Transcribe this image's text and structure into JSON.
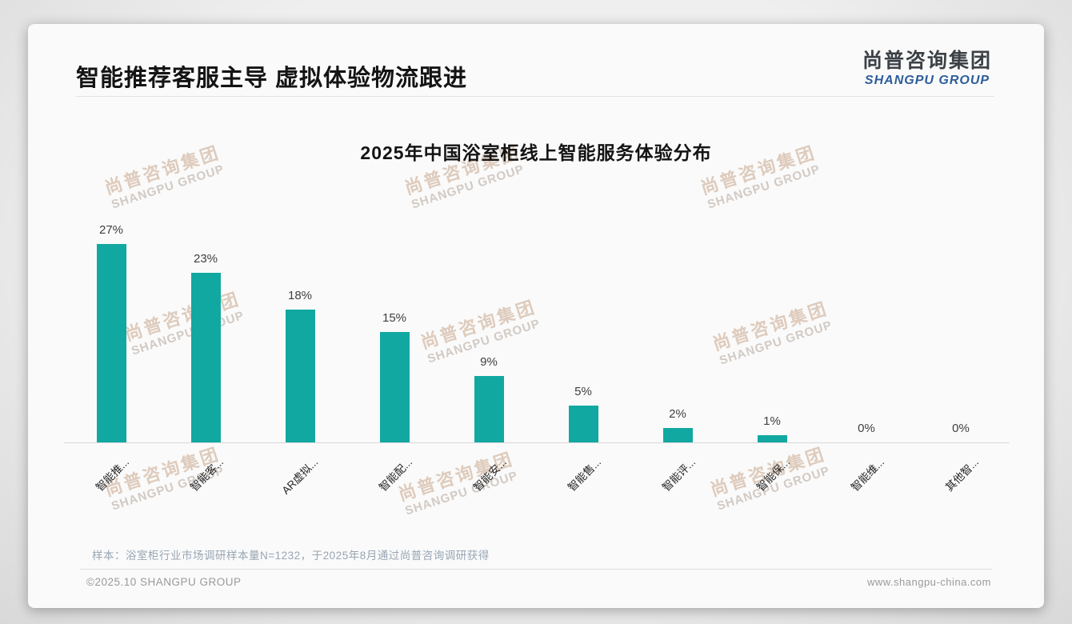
{
  "page_title": "智能推荐客服主导 虚拟体验物流跟进",
  "logo": {
    "cn": "尚普咨询集团",
    "en": "SHANGPU GROUP"
  },
  "watermark": {
    "cn": "尚普咨询集团",
    "en": "SHANGPU GROUP"
  },
  "chart_data": {
    "type": "bar",
    "title": "2025年中国浴室柜线上智能服务体验分布",
    "categories": [
      "智能推...",
      "智能客...",
      "AR虚拟...",
      "智能配...",
      "智能安...",
      "智能售...",
      "智能评...",
      "智能保...",
      "智能维...",
      "其他智..."
    ],
    "values": [
      27,
      23,
      18,
      15,
      9,
      5,
      2,
      1,
      0,
      0
    ],
    "value_labels": [
      "27%",
      "23%",
      "18%",
      "15%",
      "9%",
      "5%",
      "2%",
      "1%",
      "0%",
      "0%"
    ],
    "bar_color": "#11a8a2",
    "ylabel": "",
    "xlabel": "",
    "ylim": [
      0,
      30
    ],
    "grid": false,
    "legend": "none"
  },
  "note": "样本：浴室柜行业市场调研样本量N=1232，于2025年8月通过尚普咨询调研获得",
  "footer": {
    "left": "©2025.10 SHANGPU GROUP",
    "right": "www.shangpu-china.com"
  }
}
